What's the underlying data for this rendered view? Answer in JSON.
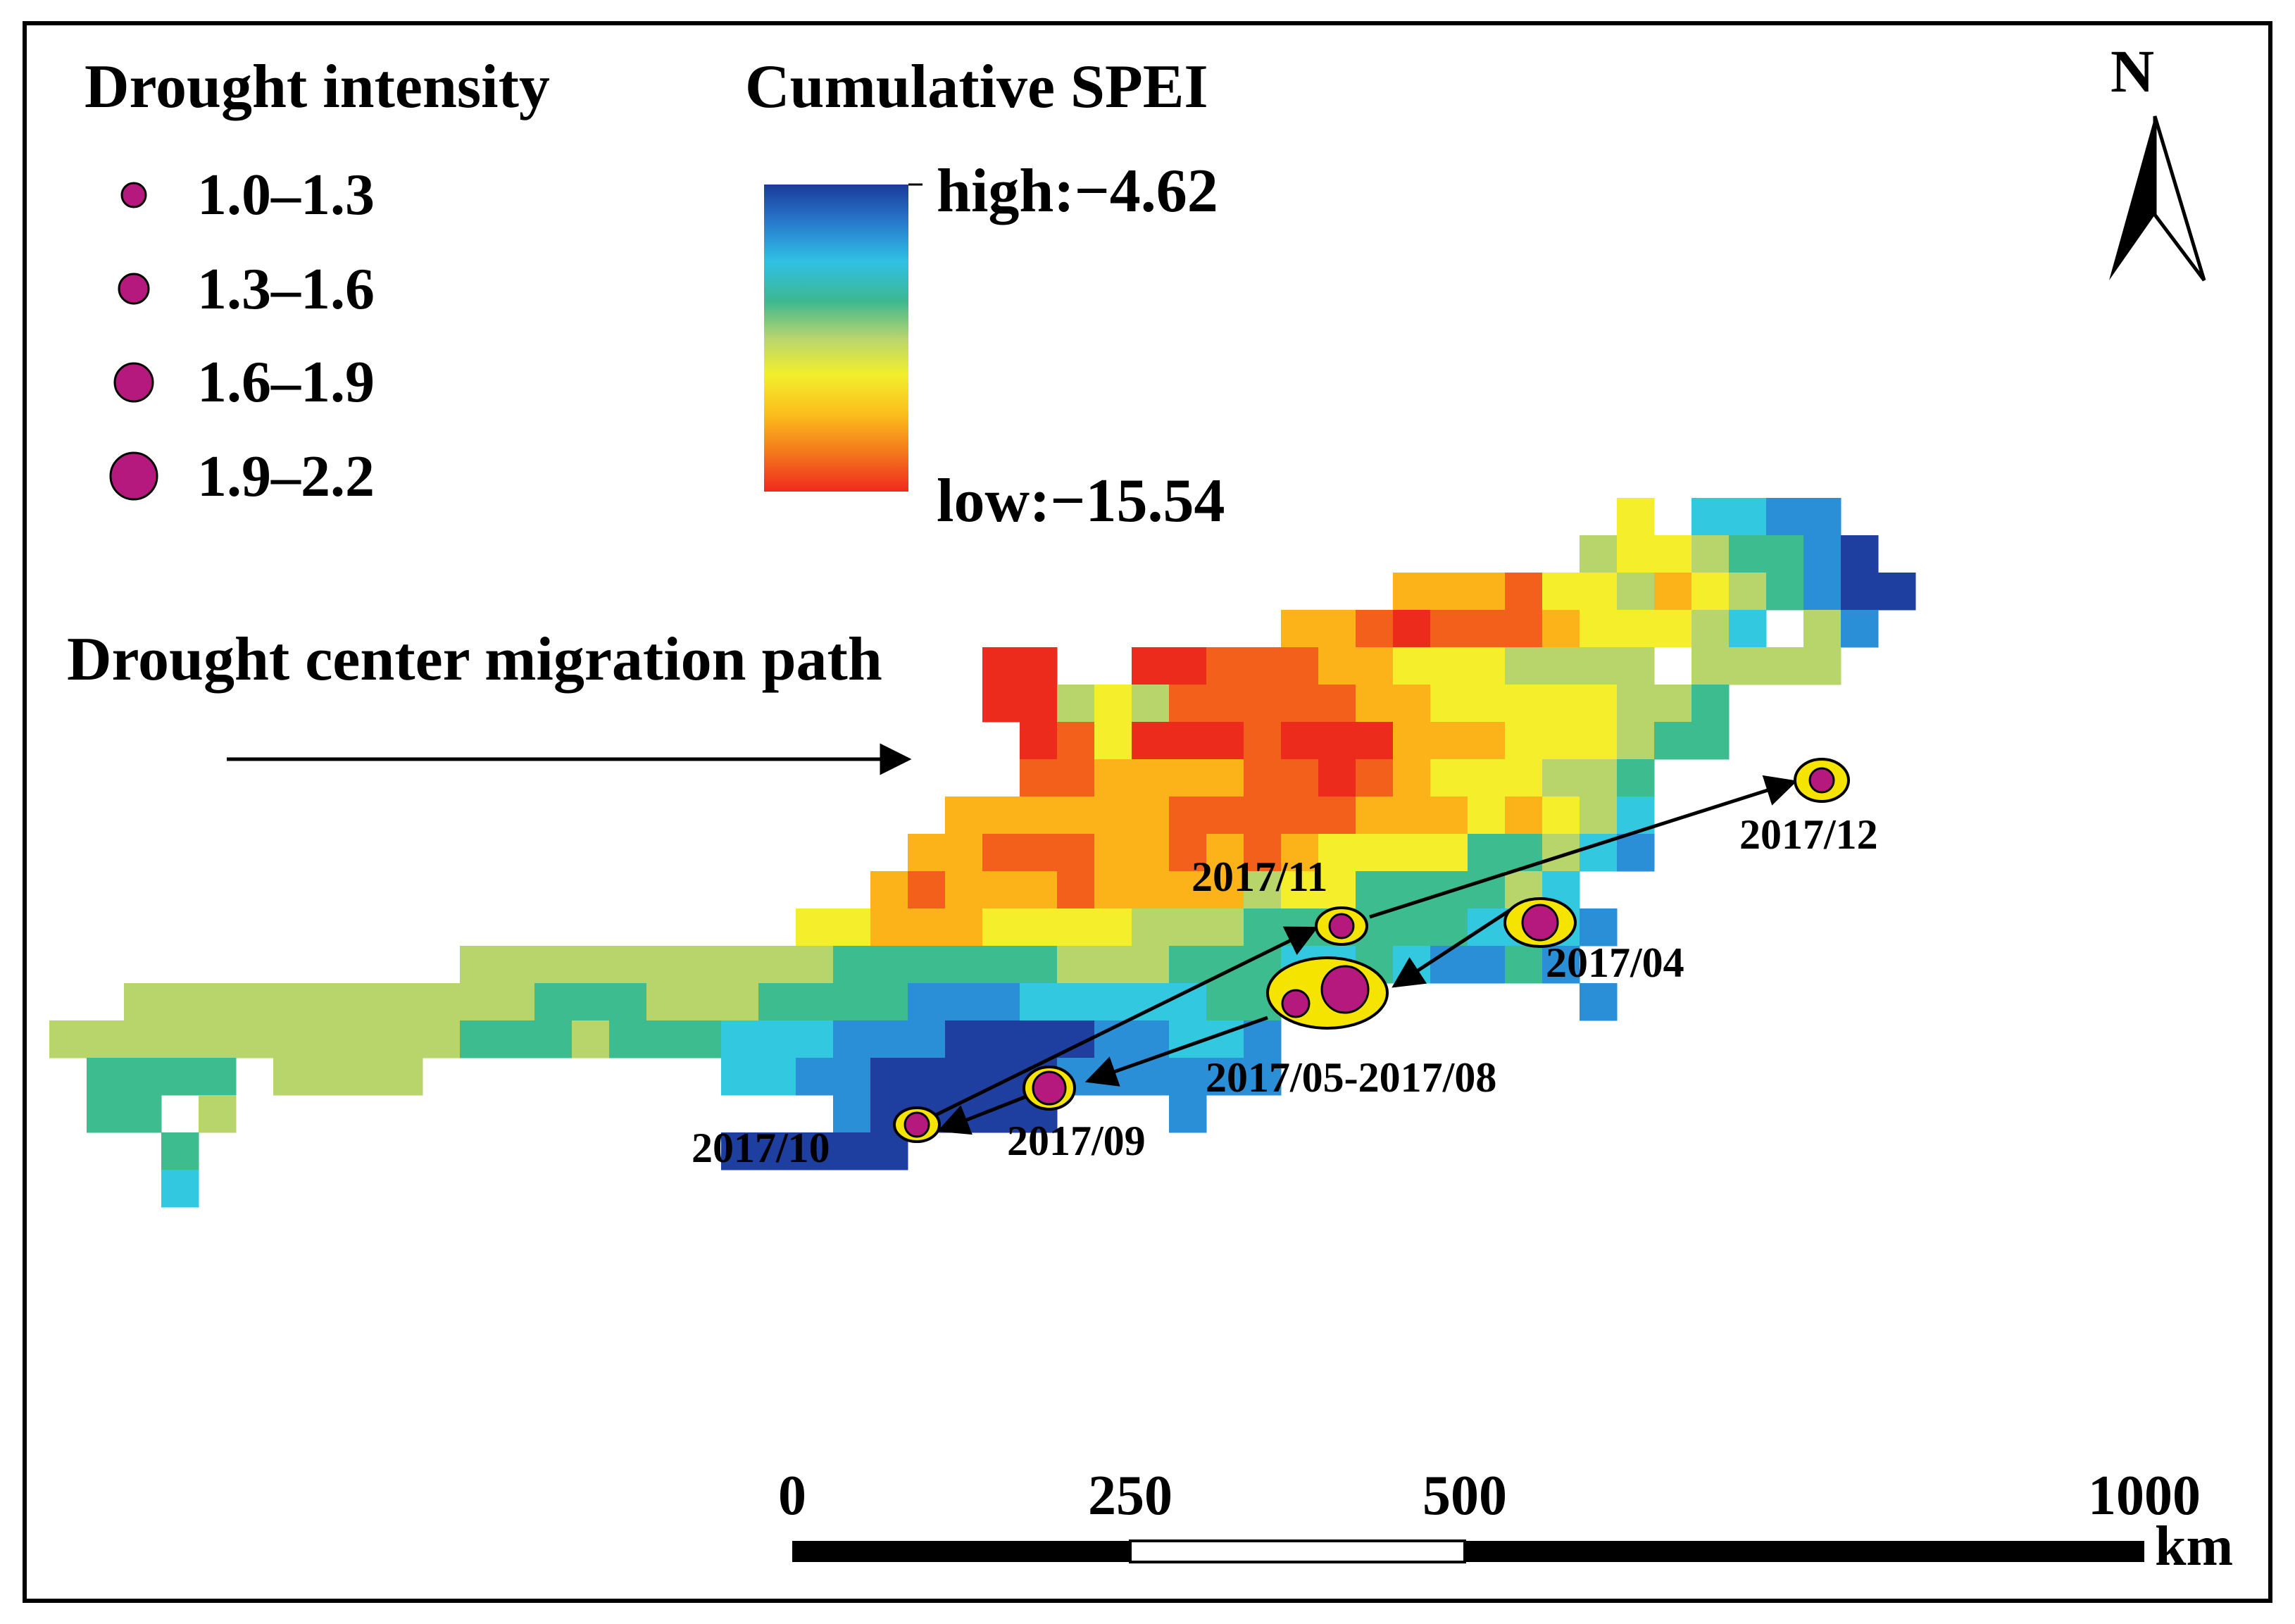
{
  "legend": {
    "intensity_title": "Drought intensity",
    "intensity_classes": [
      "1.0–1.3",
      "1.3–1.6",
      "1.6–1.9",
      "1.9–2.2"
    ],
    "spei_title": "Cumulative SPEI",
    "spei_high": "high:−4.62",
    "spei_low": "low:−15.54",
    "migration_title": "Drought center migration path"
  },
  "north_label": "N",
  "scale_bar": {
    "ticks": [
      "0",
      "250",
      "500",
      "1000"
    ],
    "unit": "km"
  },
  "centers": [
    {
      "label": "2017/04",
      "intensity_class": 3
    },
    {
      "label": "2017/05-2017/08",
      "intensity_class": 4
    },
    {
      "label": "2017/09",
      "intensity_class": 3
    },
    {
      "label": "2017/10",
      "intensity_class": 2
    },
    {
      "label": "2017/11",
      "intensity_class": 2
    },
    {
      "label": "2017/12",
      "intensity_class": 2
    }
  ],
  "colors": {
    "marker": "#b5197e",
    "ring": "#f5e400",
    "spei_ramp": [
      "#1e3f9f",
      "#2b8fd8",
      "#32c8e0",
      "#3dbd8f",
      "#b7d56a",
      "#f4ef2a",
      "#fbb319",
      "#f2601c",
      "#ed2b1d"
    ]
  }
}
